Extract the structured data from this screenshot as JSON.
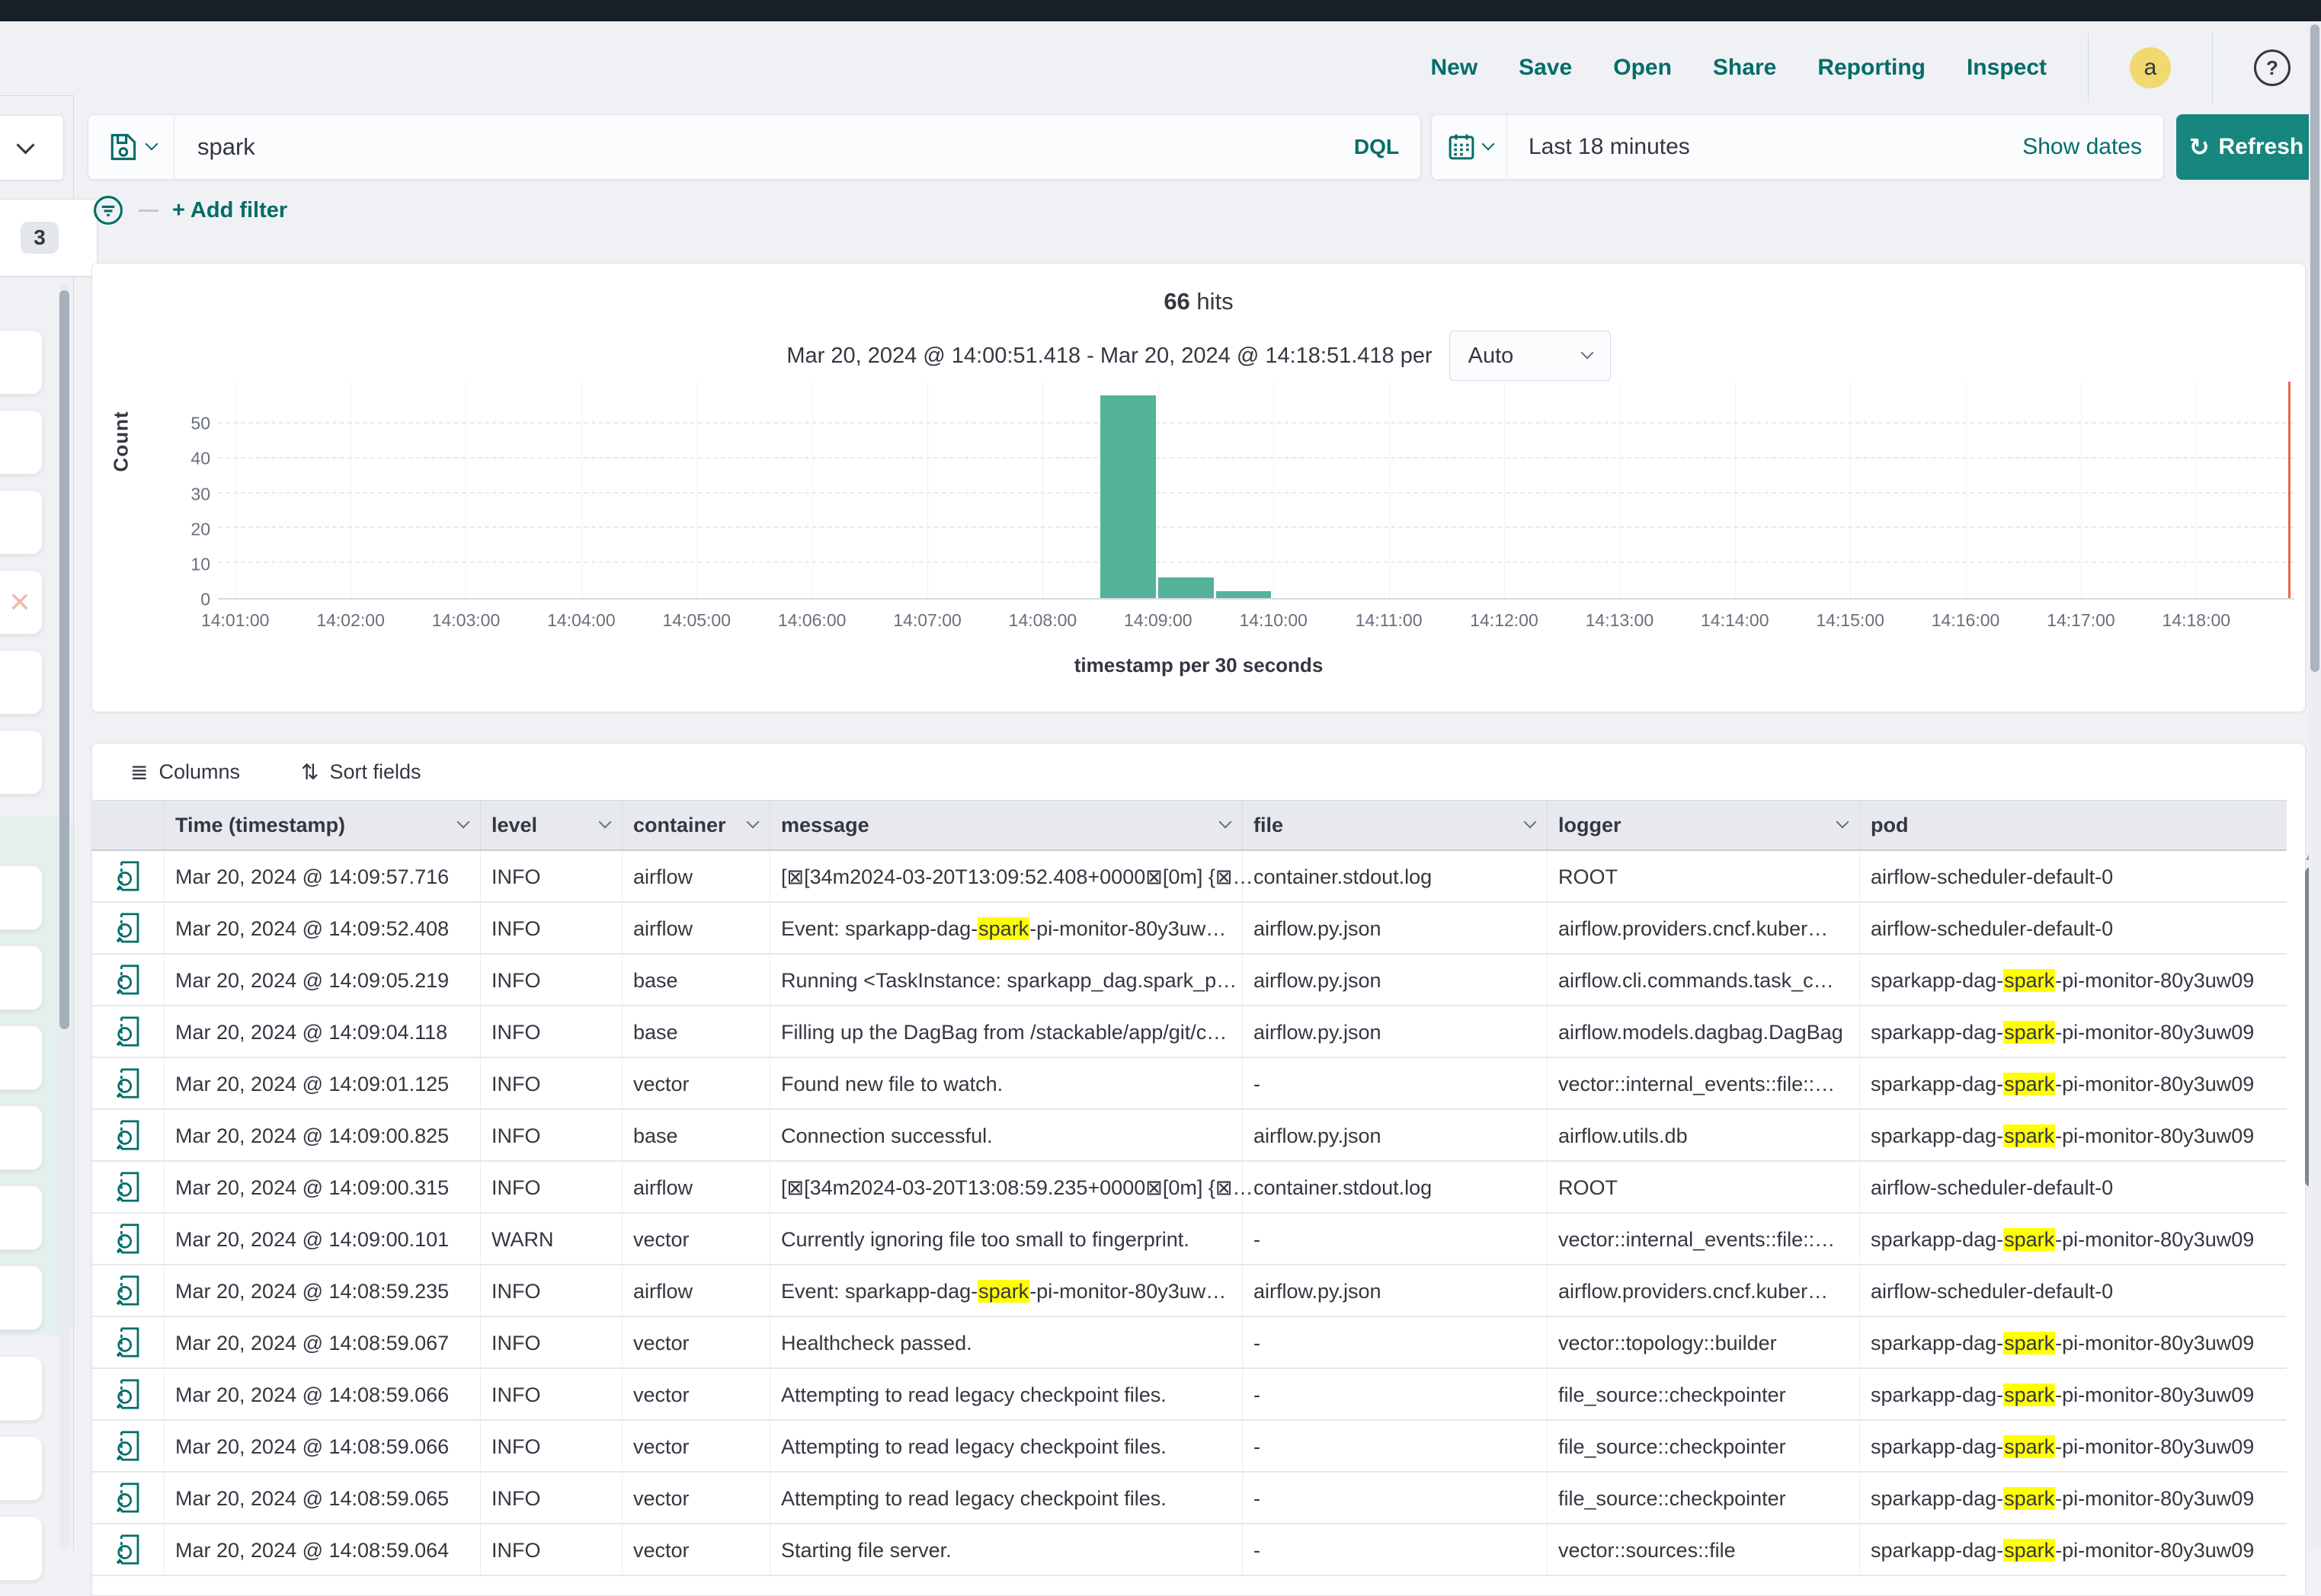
{
  "nav": {
    "links": [
      "New",
      "Save",
      "Open",
      "Share",
      "Reporting",
      "Inspect"
    ],
    "avatar_initial": "a",
    "help_label": "?"
  },
  "query": {
    "value": "spark",
    "language_label": "DQL"
  },
  "timepicker": {
    "range": "Last 18 minutes",
    "show_dates_label": "Show dates",
    "refresh_label": "Refresh"
  },
  "filter_bar": {
    "add_filter_label": "+ Add filter"
  },
  "left_panel": {
    "badge_count": "3"
  },
  "hits": {
    "count": "66",
    "label": "hits",
    "subtitle": "Mar 20, 2024 @ 14:00:51.418 - Mar 20, 2024 @ 14:18:51.418 per",
    "interval": "Auto"
  },
  "chart_data": {
    "type": "bar",
    "title": "66 hits",
    "xlabel": "timestamp per 30 seconds",
    "ylabel": "Count",
    "x_start": "14:00:51",
    "x_end": "14:18:51",
    "x_ticks": [
      "14:01:00",
      "14:02:00",
      "14:03:00",
      "14:04:00",
      "14:05:00",
      "14:06:00",
      "14:07:00",
      "14:08:00",
      "14:09:00",
      "14:10:00",
      "14:11:00",
      "14:12:00",
      "14:13:00",
      "14:14:00",
      "14:15:00",
      "14:16:00",
      "14:17:00",
      "14:18:00"
    ],
    "y_ticks": [
      0,
      10,
      20,
      30,
      40,
      50
    ],
    "ylim": [
      0,
      62
    ],
    "bucket_seconds": 30,
    "bars": [
      {
        "time": "14:08:30",
        "count": 58
      },
      {
        "time": "14:09:00",
        "count": 6
      },
      {
        "time": "14:09:30",
        "count": 2
      }
    ],
    "now_line_time": "14:18:48",
    "bar_color": "#54B399",
    "now_line_color": "#e7664c",
    "grid": true,
    "legend": "none"
  },
  "table": {
    "controls": {
      "columns_label": "Columns",
      "sort_label": "Sort fields"
    },
    "columns": [
      {
        "label": "Time (timestamp)",
        "chevron": true
      },
      {
        "label": "level",
        "chevron": true
      },
      {
        "label": "container",
        "chevron": true
      },
      {
        "label": "message",
        "chevron": true
      },
      {
        "label": "file",
        "chevron": true
      },
      {
        "label": "logger",
        "chevron": true
      },
      {
        "label": "pod",
        "chevron": false
      }
    ],
    "rows": [
      {
        "time": "Mar 20, 2024 @ 14:09:57.716",
        "level": "INFO",
        "container": "airflow",
        "message": "[⊠[34m2024-03-20T13:09:52.408+0000⊠[0m] {⊠…",
        "file": "container.stdout.log",
        "logger": "ROOT",
        "pod": "airflow-scheduler-default-0"
      },
      {
        "time": "Mar 20, 2024 @ 14:09:52.408",
        "level": "INFO",
        "container": "airflow",
        "message": "Event: sparkapp-dag-«spark»-pi-monitor-80y3uw…",
        "file": "airflow.py.json",
        "logger": "airflow.providers.cncf.kuber…",
        "pod": "airflow-scheduler-default-0"
      },
      {
        "time": "Mar 20, 2024 @ 14:09:05.219",
        "level": "INFO",
        "container": "base",
        "message": "Running <TaskInstance: sparkapp_dag.spark_p…",
        "file": "airflow.py.json",
        "logger": "airflow.cli.commands.task_c…",
        "pod": "sparkapp-dag-«spark»-pi-monitor-80y3uw09"
      },
      {
        "time": "Mar 20, 2024 @ 14:09:04.118",
        "level": "INFO",
        "container": "base",
        "message": "Filling up the DagBag from /stackable/app/git/c…",
        "file": "airflow.py.json",
        "logger": "airflow.models.dagbag.DagBag",
        "pod": "sparkapp-dag-«spark»-pi-monitor-80y3uw09"
      },
      {
        "time": "Mar 20, 2024 @ 14:09:01.125",
        "level": "INFO",
        "container": "vector",
        "message": "Found new file to watch.",
        "file": "-",
        "logger": "vector::internal_events::file::…",
        "pod": "sparkapp-dag-«spark»-pi-monitor-80y3uw09"
      },
      {
        "time": "Mar 20, 2024 @ 14:09:00.825",
        "level": "INFO",
        "container": "base",
        "message": "Connection successful.",
        "file": "airflow.py.json",
        "logger": "airflow.utils.db",
        "pod": "sparkapp-dag-«spark»-pi-monitor-80y3uw09"
      },
      {
        "time": "Mar 20, 2024 @ 14:09:00.315",
        "level": "INFO",
        "container": "airflow",
        "message": "[⊠[34m2024-03-20T13:08:59.235+0000⊠[0m] {⊠…",
        "file": "container.stdout.log",
        "logger": "ROOT",
        "pod": "airflow-scheduler-default-0"
      },
      {
        "time": "Mar 20, 2024 @ 14:09:00.101",
        "level": "WARN",
        "container": "vector",
        "message": "Currently ignoring file too small to fingerprint.",
        "file": "-",
        "logger": "vector::internal_events::file::…",
        "pod": "sparkapp-dag-«spark»-pi-monitor-80y3uw09"
      },
      {
        "time": "Mar 20, 2024 @ 14:08:59.235",
        "level": "INFO",
        "container": "airflow",
        "message": "Event: sparkapp-dag-«spark»-pi-monitor-80y3uw…",
        "file": "airflow.py.json",
        "logger": "airflow.providers.cncf.kuber…",
        "pod": "airflow-scheduler-default-0"
      },
      {
        "time": "Mar 20, 2024 @ 14:08:59.067",
        "level": "INFO",
        "container": "vector",
        "message": "Healthcheck passed.",
        "file": "-",
        "logger": "vector::topology::builder",
        "pod": "sparkapp-dag-«spark»-pi-monitor-80y3uw09"
      },
      {
        "time": "Mar 20, 2024 @ 14:08:59.066",
        "level": "INFO",
        "container": "vector",
        "message": "Attempting to read legacy checkpoint files.",
        "file": "-",
        "logger": "file_source::checkpointer",
        "pod": "sparkapp-dag-«spark»-pi-monitor-80y3uw09"
      },
      {
        "time": "Mar 20, 2024 @ 14:08:59.066",
        "level": "INFO",
        "container": "vector",
        "message": "Attempting to read legacy checkpoint files.",
        "file": "-",
        "logger": "file_source::checkpointer",
        "pod": "sparkapp-dag-«spark»-pi-monitor-80y3uw09"
      },
      {
        "time": "Mar 20, 2024 @ 14:08:59.065",
        "level": "INFO",
        "container": "vector",
        "message": "Attempting to read legacy checkpoint files.",
        "file": "-",
        "logger": "file_source::checkpointer",
        "pod": "sparkapp-dag-«spark»-pi-monitor-80y3uw09"
      },
      {
        "time": "Mar 20, 2024 @ 14:08:59.064",
        "level": "INFO",
        "container": "vector",
        "message": "Starting file server.",
        "file": "-",
        "logger": "vector::sources::file",
        "pod": "sparkapp-dag-«spark»-pi-monitor-80y3uw09"
      }
    ]
  },
  "colors": {
    "accent_link": "#006d69",
    "accent_button": "#17867e",
    "bar_green": "#54B399",
    "highlight_yellow": "#ffff00",
    "topstrip_dark": "#172029"
  }
}
